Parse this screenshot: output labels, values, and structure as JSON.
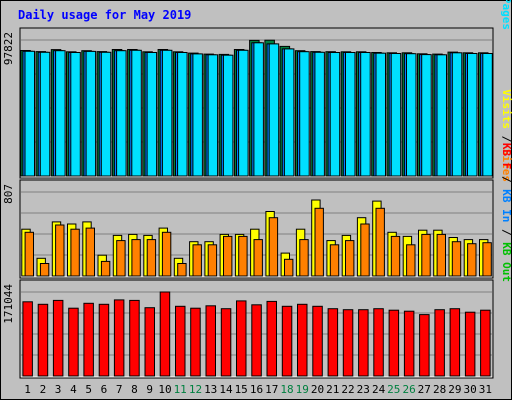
{
  "chart_data": {
    "type": "bar",
    "title": "Daily usage for May 2019",
    "categories": [
      "1",
      "2",
      "3",
      "4",
      "5",
      "6",
      "7",
      "8",
      "9",
      "10",
      "11",
      "12",
      "13",
      "14",
      "15",
      "16",
      "17",
      "18",
      "19",
      "20",
      "21",
      "22",
      "23",
      "24",
      "25",
      "26",
      "27",
      "28",
      "29",
      "30",
      "31"
    ],
    "weekend_days": [
      "11",
      "12",
      "18",
      "19",
      "25",
      "26"
    ],
    "panels": [
      {
        "id": "top",
        "max_label": "97822",
        "ymax": 97822,
        "right_labels": [
          {
            "text": "Hits",
            "color": "#008040"
          },
          {
            "text": " / ",
            "color": "#000000"
          },
          {
            "text": "Files",
            "color": "#0040ff"
          },
          {
            "text": " / ",
            "color": "#000000"
          },
          {
            "text": "Pages",
            "color": "#00e0ff"
          }
        ],
        "series": [
          {
            "name": "Hits",
            "color": "#008040",
            "values": [
              90300,
              89500,
              90900,
              89300,
              90100,
              89500,
              91000,
              91000,
              89300,
              91000,
              89300,
              88400,
              87700,
              87500,
              91000,
              97500,
              97700,
              93200,
              90100,
              89500,
              89400,
              89300,
              89300,
              88800,
              88600,
              88600,
              87900,
              87700,
              89100,
              88600,
              88600
            ]
          },
          {
            "name": "Files",
            "color": "#0080ff",
            "values": [
              89700,
              89000,
              90100,
              88800,
              89600,
              89000,
              90100,
              90400,
              88800,
              90400,
              88800,
              87800,
              87200,
              86900,
              90400,
              95800,
              95000,
              91400,
              89400,
              89000,
              88800,
              88800,
              88800,
              88300,
              88100,
              88000,
              87300,
              87200,
              88600,
              88100,
              88100
            ]
          },
          {
            "name": "Pages",
            "color": "#00e0ff",
            "values": [
              89700,
              89000,
              90100,
              88800,
              89600,
              89000,
              90100,
              90400,
              88800,
              90400,
              88800,
              87800,
              87200,
              86900,
              90400,
              95800,
              95000,
              91400,
              89400,
              89000,
              88800,
              88800,
              88800,
              88300,
              88100,
              88000,
              87300,
              87200,
              88600,
              88100,
              88100
            ]
          }
        ]
      },
      {
        "id": "middle",
        "max_label": "807",
        "ymax": 807,
        "right_labels": [
          {
            "text": "Visits",
            "color": "#ffff00"
          },
          {
            "text": " / ",
            "color": "#000000"
          },
          {
            "text": "Sites",
            "color": "#ff8000"
          }
        ],
        "series": [
          {
            "name": "Visits",
            "color": "#ffff00",
            "values": [
              450,
              170,
              520,
              500,
              520,
              200,
              390,
              400,
              390,
              460,
              170,
              330,
              330,
              400,
              400,
              450,
              620,
              220,
              450,
              730,
              340,
              390,
              560,
              720,
              420,
              380,
              440,
              440,
              370,
              350,
              350
            ]
          },
          {
            "name": "Sites",
            "color": "#ff8000",
            "values": [
              420,
              120,
              490,
              450,
              460,
              140,
              340,
              350,
              350,
              420,
              120,
              300,
              300,
              380,
              380,
              350,
              560,
              160,
              350,
              650,
              300,
              340,
              500,
              650,
              380,
              300,
              400,
              400,
              330,
              310,
              320
            ]
          }
        ]
      },
      {
        "id": "bottom",
        "max_label": "171044",
        "ymax": 171044,
        "right_labels": [
          {
            "text": "KB F",
            "color": "#ff0000"
          },
          {
            "text": " / ",
            "color": "#000000"
          },
          {
            "text": "KB In",
            "color": "#0080ff"
          },
          {
            "text": " / ",
            "color": "#000000"
          },
          {
            "text": "KB Out",
            "color": "#00c000"
          }
        ],
        "series": [
          {
            "name": "KB F",
            "color": "#ff0000",
            "values": [
              151000,
              146000,
              154000,
              138000,
              148000,
              146000,
              155000,
              154000,
              139000,
              171000,
              142000,
              138000,
              143000,
              137000,
              153000,
              145000,
              152000,
              142000,
              146000,
              142000,
              137000,
              135000,
              135000,
              137000,
              134000,
              132000,
              125000,
              135000,
              137000,
              130000,
              134000
            ]
          }
        ]
      }
    ]
  }
}
